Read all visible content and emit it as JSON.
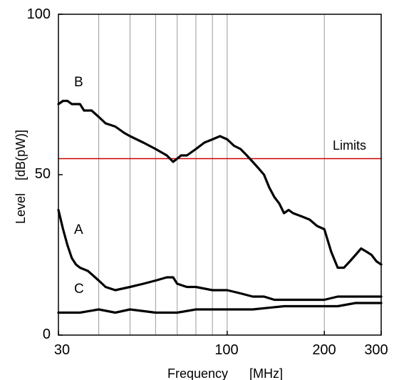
{
  "chart_data": {
    "type": "line",
    "title": "",
    "xlabel": {
      "name": "Frequency",
      "unit": "[MHz]"
    },
    "ylabel": {
      "name": "Level",
      "unit": "[dB(pW)]"
    },
    "x_scale": "log",
    "xlim": [
      30,
      300
    ],
    "ylim": [
      0,
      100
    ],
    "x_ticks": [
      30,
      100,
      200,
      300
    ],
    "x_tick_labels": [
      "30",
      "100",
      "200",
      "300"
    ],
    "y_ticks": [
      0,
      50,
      100
    ],
    "y_tick_labels": [
      "0",
      "50",
      "100"
    ],
    "vertical_gridlines": [
      40,
      50,
      60,
      70,
      80,
      90,
      100,
      200
    ],
    "grid": true,
    "limit_line": {
      "label": "Limits",
      "value": 55,
      "color": "#cc0000"
    },
    "series": [
      {
        "name": "B",
        "color": "#000000",
        "x": [
          30,
          31,
          32,
          33,
          34,
          35,
          36,
          37,
          38,
          40,
          42,
          45,
          48,
          50,
          55,
          60,
          65,
          68,
          70,
          72,
          75,
          80,
          85,
          90,
          95,
          100,
          105,
          110,
          115,
          120,
          125,
          130,
          135,
          140,
          145,
          150,
          155,
          160,
          170,
          180,
          190,
          200,
          210,
          220,
          230,
          240,
          250,
          260,
          270,
          280,
          290,
          300
        ],
        "y": [
          72,
          73,
          73,
          72,
          72,
          72,
          70,
          70,
          70,
          68,
          66,
          65,
          63,
          62,
          60,
          58,
          56,
          54,
          55,
          56,
          56,
          58,
          60,
          61,
          62,
          61,
          59,
          58,
          56,
          54,
          52,
          50,
          46,
          43,
          41,
          38,
          39,
          38,
          37,
          36,
          34,
          33,
          26,
          21,
          21,
          23,
          25,
          27,
          26,
          25,
          23,
          22
        ]
      },
      {
        "name": "A",
        "color": "#000000",
        "x": [
          30,
          31,
          32,
          33,
          34,
          35,
          37,
          38,
          40,
          42,
          45,
          50,
          55,
          60,
          65,
          68,
          70,
          75,
          80,
          90,
          100,
          110,
          120,
          130,
          140,
          160,
          180,
          200,
          220,
          250,
          300
        ],
        "y": [
          39,
          33,
          28,
          24,
          22,
          21,
          20,
          19,
          17,
          15,
          14,
          15,
          16,
          17,
          18,
          18,
          16,
          15,
          15,
          14,
          14,
          13,
          12,
          12,
          11,
          11,
          11,
          11,
          12,
          12,
          12
        ]
      },
      {
        "name": "C",
        "color": "#000000",
        "x": [
          30,
          35,
          40,
          45,
          50,
          60,
          70,
          80,
          90,
          100,
          120,
          150,
          180,
          200,
          220,
          250,
          280,
          300
        ],
        "y": [
          7,
          7,
          8,
          7,
          8,
          7,
          7,
          8,
          8,
          8,
          8,
          9,
          9,
          9,
          9,
          10,
          10,
          10
        ]
      }
    ],
    "curve_labels": [
      "B",
      "A",
      "C"
    ]
  }
}
